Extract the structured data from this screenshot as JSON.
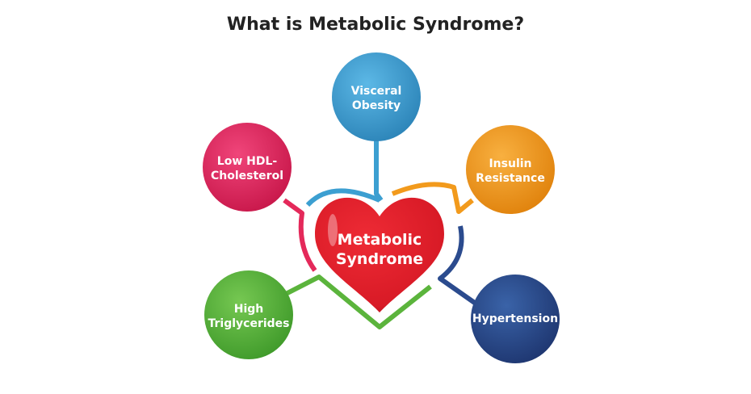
{
  "title": "What is Metabolic Syndrome?",
  "center": {
    "line1": "Metabolic",
    "line2": "Syndrome",
    "color": "#e11d2a"
  },
  "nodes": [
    {
      "id": "visceral-obesity",
      "line1": "Visceral",
      "line2": "Obesity",
      "color": "#3c9fd1"
    },
    {
      "id": "low-hdl-cholesterol",
      "line1": "Low HDL-",
      "line2": "Cholesterol",
      "color": "#e4295a"
    },
    {
      "id": "insulin-resistance",
      "line1": "Insulin",
      "line2": "Resistance",
      "color": "#f29a1c"
    },
    {
      "id": "high-triglycerides",
      "line1": "High",
      "line2": "Triglycerides",
      "color": "#5bb43c"
    },
    {
      "id": "hypertension",
      "line1": "Hypertension",
      "line2": "",
      "color": "#2b4b8e"
    }
  ]
}
